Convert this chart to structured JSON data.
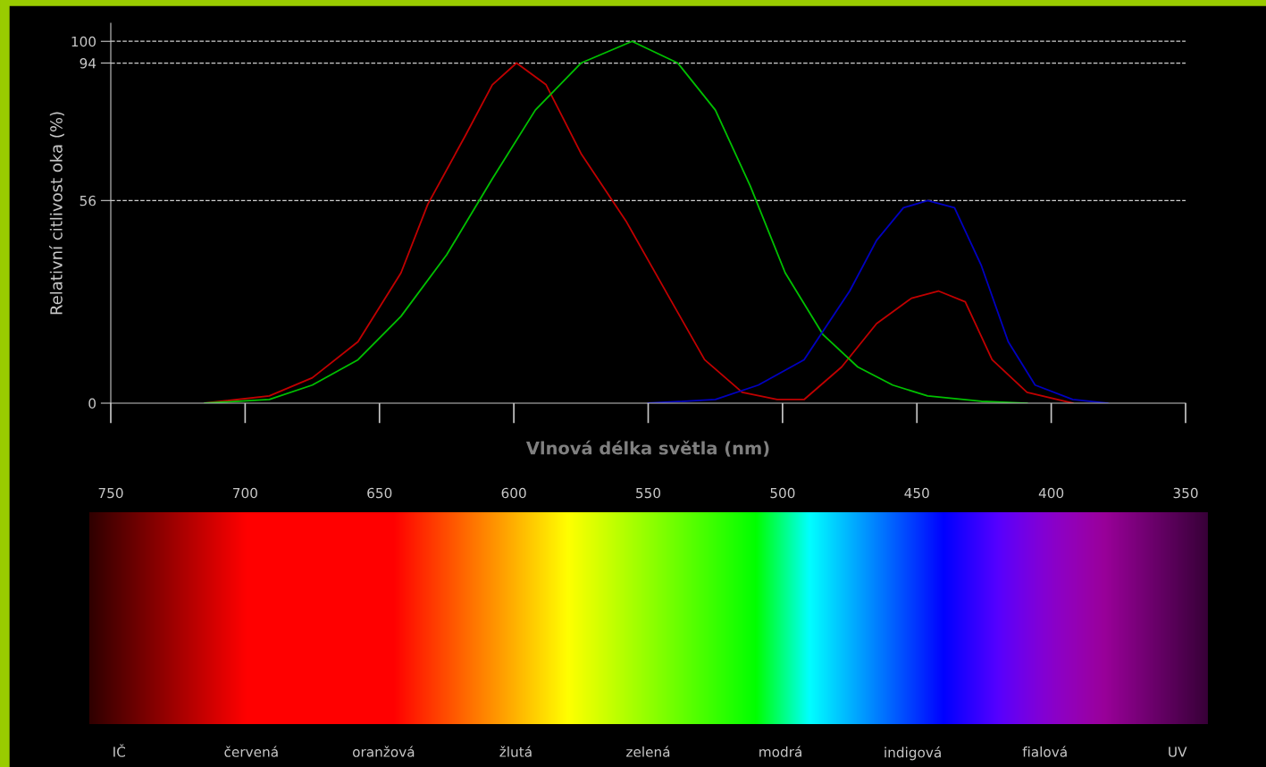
{
  "chart_data": [
    {
      "type": "line",
      "ylabel": "Relativní citlivost oka (%)",
      "xlabel": "Vlnová délka světla (nm)",
      "xlim": [
        750,
        350
      ],
      "xticks": [
        750,
        700,
        650,
        600,
        550,
        500,
        450,
        400,
        350
      ],
      "ylim": [
        0,
        105
      ],
      "yticks": [
        0,
        56,
        94,
        100
      ],
      "grid": "y",
      "line_style": "solid",
      "series": [
        {
          "color": "#c00000",
          "x": [
            715,
            691,
            675,
            658,
            642,
            632,
            618,
            608,
            599,
            588,
            575,
            558,
            542,
            529,
            515,
            502,
            492,
            478,
            465,
            452,
            442,
            432,
            422,
            409,
            392
          ],
          "values": [
            0,
            2,
            7,
            17,
            36,
            55,
            74,
            88,
            94,
            88,
            69,
            50,
            29,
            12,
            3,
            1,
            1,
            10,
            22,
            29,
            31,
            28,
            12,
            3,
            0
          ]
        },
        {
          "color": "#00c000",
          "x": [
            715,
            691,
            675,
            658,
            642,
            625,
            608,
            592,
            575,
            556,
            539,
            525,
            512,
            499,
            485,
            472,
            459,
            446,
            426,
            409
          ],
          "values": [
            0,
            1,
            5,
            12,
            24,
            41,
            62,
            81,
            94,
            100,
            94,
            81,
            60,
            36,
            19,
            10,
            5,
            2,
            0.5,
            0
          ]
        },
        {
          "color": "#0000c0",
          "x": [
            550,
            525,
            509,
            492,
            475,
            465,
            455,
            446,
            436,
            426,
            416,
            406,
            392,
            379
          ],
          "values": [
            0,
            1,
            5,
            12,
            31,
            45,
            54,
            56,
            54,
            38,
            17,
            5,
            1,
            0
          ]
        }
      ]
    },
    {
      "type": "other",
      "categories": [
        "IČ",
        "červená",
        "oranžová",
        "žlutá",
        "zelená",
        "modrá",
        "indigová",
        "fialová",
        "UV"
      ]
    }
  ]
}
